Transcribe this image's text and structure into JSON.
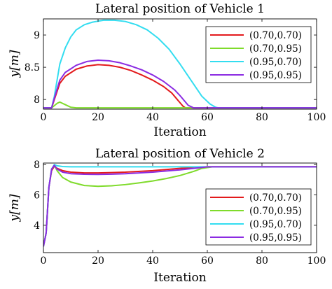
{
  "chart_data": [
    {
      "type": "line",
      "title": "Lateral position of Vehicle 1",
      "xlabel": "Iteration",
      "ylabel": "y[m]",
      "xlim": [
        0,
        100
      ],
      "ylim": [
        7.85,
        9.25
      ],
      "xticks": [
        "0",
        "20",
        "40",
        "60",
        "80",
        "100"
      ],
      "yticks": [
        "8",
        "8.5",
        "9"
      ],
      "legend_position": "top-right",
      "series": [
        {
          "name": "(0.70,0.70)",
          "color": "#e31a1c",
          "x": [
            0,
            3,
            4,
            6,
            8,
            12,
            16,
            20,
            24,
            28,
            32,
            36,
            40,
            44,
            47,
            49,
            51,
            52,
            100
          ],
          "values": [
            7.87,
            7.87,
            8.0,
            8.25,
            8.36,
            8.47,
            8.52,
            8.54,
            8.53,
            8.5,
            8.45,
            8.38,
            8.3,
            8.2,
            8.1,
            8.0,
            7.9,
            7.87,
            7.87
          ]
        },
        {
          "name": "(0.70,0.95)",
          "color": "#7fdb2b",
          "x": [
            0,
            3,
            5,
            6,
            8,
            10,
            12,
            100
          ],
          "values": [
            7.87,
            7.87,
            7.94,
            7.96,
            7.92,
            7.88,
            7.87,
            7.87
          ]
        },
        {
          "name": "(0.95,0.70)",
          "color": "#33ddf0",
          "x": [
            0,
            3,
            4,
            6,
            8,
            10,
            12,
            15,
            18,
            22,
            26,
            30,
            34,
            38,
            42,
            46,
            50,
            54,
            58,
            61,
            63,
            64,
            100
          ],
          "values": [
            7.87,
            7.87,
            8.05,
            8.55,
            8.8,
            8.97,
            9.08,
            9.16,
            9.2,
            9.23,
            9.23,
            9.21,
            9.16,
            9.08,
            8.95,
            8.78,
            8.55,
            8.3,
            8.05,
            7.93,
            7.88,
            7.87,
            7.87
          ]
        },
        {
          "name": "(0.95,0.95)",
          "color": "#8b2be2",
          "x": [
            0,
            3,
            4,
            6,
            8,
            12,
            16,
            20,
            24,
            28,
            32,
            36,
            40,
            44,
            48,
            50,
            52,
            53,
            55,
            100
          ],
          "values": [
            7.87,
            7.87,
            8.02,
            8.3,
            8.42,
            8.53,
            8.59,
            8.61,
            8.6,
            8.57,
            8.52,
            8.46,
            8.38,
            8.28,
            8.15,
            8.06,
            7.96,
            7.91,
            7.87,
            7.87
          ]
        }
      ]
    },
    {
      "type": "line",
      "title": "Lateral position of Vehicle 2",
      "xlabel": "Iteration",
      "ylabel": "y[m]",
      "xlim": [
        0,
        100
      ],
      "ylim": [
        2.2,
        8.1
      ],
      "xticks": [
        "0",
        "20",
        "40",
        "60",
        "80",
        "100"
      ],
      "yticks": [
        "4",
        "6",
        "8"
      ],
      "legend_position": "bottom-right",
      "series": [
        {
          "name": "(0.70,0.70)",
          "color": "#e31a1c",
          "x": [
            0,
            1,
            2,
            3,
            4,
            5,
            7,
            10,
            15,
            20,
            25,
            30,
            40,
            50,
            60,
            100
          ],
          "values": [
            2.6,
            3.5,
            6.5,
            7.6,
            7.9,
            7.75,
            7.6,
            7.5,
            7.45,
            7.45,
            7.47,
            7.5,
            7.6,
            7.75,
            7.85,
            7.85
          ]
        },
        {
          "name": "(0.70,0.95)",
          "color": "#7fdb2b",
          "x": [
            0,
            1,
            2,
            3,
            4,
            5,
            7,
            10,
            15,
            20,
            25,
            30,
            35,
            40,
            45,
            50,
            55,
            58,
            62,
            100
          ],
          "values": [
            2.6,
            3.5,
            6.5,
            7.7,
            7.95,
            7.6,
            7.15,
            6.85,
            6.62,
            6.57,
            6.6,
            6.68,
            6.79,
            6.92,
            7.08,
            7.28,
            7.55,
            7.75,
            7.85,
            7.85
          ]
        },
        {
          "name": "(0.95,0.70)",
          "color": "#33ddf0",
          "x": [
            0,
            1,
            2,
            3,
            4,
            5,
            7,
            10,
            100
          ],
          "values": [
            2.6,
            3.5,
            6.5,
            7.7,
            8.0,
            7.92,
            7.87,
            7.85,
            7.85
          ]
        },
        {
          "name": "(0.95,0.95)",
          "color": "#8b2be2",
          "x": [
            0,
            1,
            2,
            3,
            4,
            5,
            7,
            10,
            15,
            20,
            25,
            30,
            40,
            50,
            55,
            60,
            100
          ],
          "values": [
            2.6,
            3.5,
            6.5,
            7.7,
            7.95,
            7.7,
            7.5,
            7.4,
            7.36,
            7.35,
            7.37,
            7.4,
            7.5,
            7.65,
            7.75,
            7.85,
            7.85
          ]
        }
      ]
    }
  ]
}
